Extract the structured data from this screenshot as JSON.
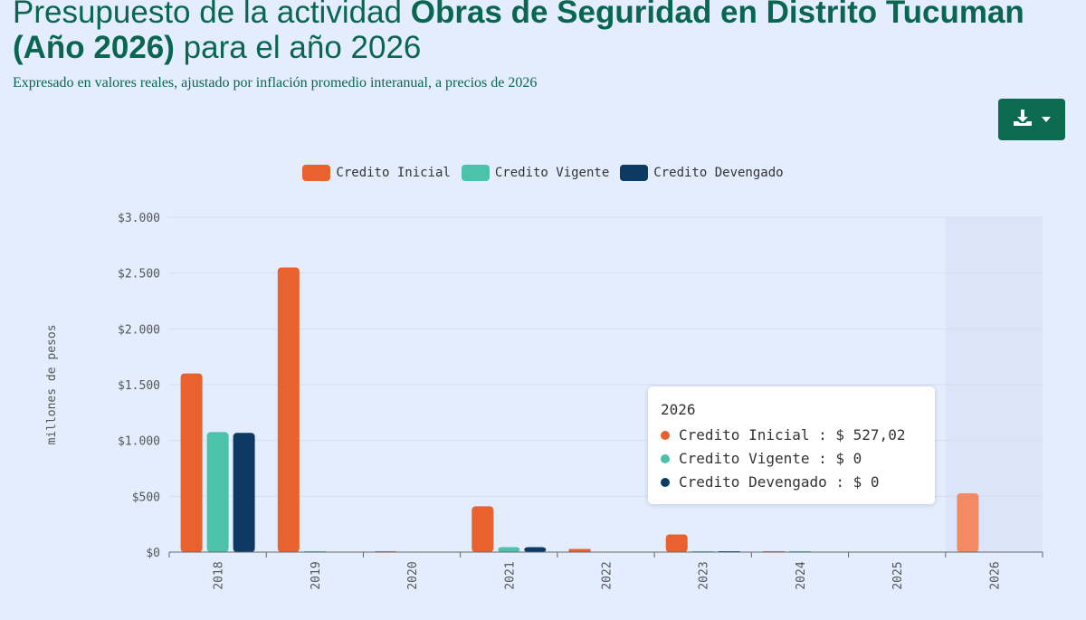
{
  "header": {
    "title_prefix": "Presupuesto de la actividad ",
    "title_bold": "Obras de Seguridad en Distrito Tucuman (Año 2026)",
    "title_suffix": " para el año 2026",
    "subtitle": "Expresado en valores reales, ajustado por inflación promedio interanual, a precios de 2026"
  },
  "toolbar": {
    "download_icon": "download-icon"
  },
  "chart_data": {
    "type": "bar",
    "categories": [
      "2018",
      "2019",
      "2020",
      "2021",
      "2022",
      "2023",
      "2024",
      "2025",
      "2026"
    ],
    "series": [
      {
        "name": "Credito Inicial",
        "color": "#e8612f",
        "values": [
          1600,
          2550,
          4,
          410,
          28,
          158,
          4,
          0,
          527.02
        ]
      },
      {
        "name": "Credito Vigente",
        "color": "#4bc2a9",
        "values": [
          1075,
          4,
          0,
          45,
          0,
          6,
          4,
          0,
          0
        ]
      },
      {
        "name": "Credito Devengado",
        "color": "#0c3a63",
        "values": [
          1068,
          0,
          0,
          45,
          0,
          6,
          0,
          0,
          0
        ]
      }
    ],
    "ylabel": "millones de pesos",
    "ylim": [
      0,
      3000
    ],
    "yticks": [
      {
        "value": 0,
        "label": "$0"
      },
      {
        "value": 500,
        "label": "$500"
      },
      {
        "value": 1000,
        "label": "$1.000"
      },
      {
        "value": 1500,
        "label": "$1.500"
      },
      {
        "value": 2000,
        "label": "$2.000"
      },
      {
        "value": 2500,
        "label": "$2.500"
      },
      {
        "value": 3000,
        "label": "$3.000"
      }
    ],
    "legend_position": "top-center",
    "highlighted_category": "2026",
    "highlight_color": "#f28a63",
    "tooltip": {
      "title": "2026",
      "rows": [
        {
          "label": "Credito Inicial : $ 527,02",
          "color": "#e8612f"
        },
        {
          "label": "Credito Vigente : $ 0",
          "color": "#4bc2a9"
        },
        {
          "label": "Credito Devengado : $ 0",
          "color": "#0c3a63"
        }
      ]
    }
  }
}
